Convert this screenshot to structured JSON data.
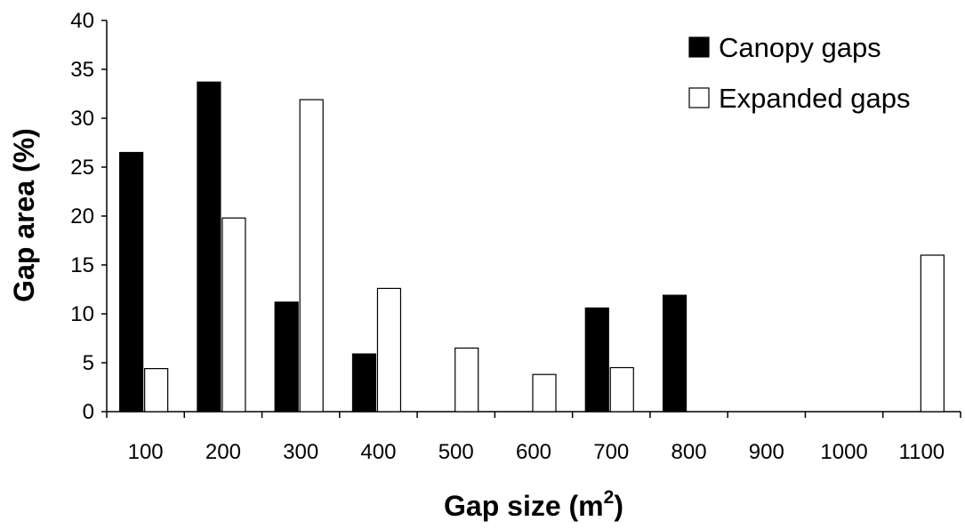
{
  "chart_data": {
    "type": "bar",
    "categories": [
      "100",
      "200",
      "300",
      "400",
      "500",
      "600",
      "700",
      "800",
      "900",
      "1000",
      "1100"
    ],
    "series": [
      {
        "name": "Canopy gaps",
        "values": [
          26.5,
          33.7,
          11.2,
          5.9,
          0,
          0,
          10.6,
          11.9,
          0,
          0,
          0
        ],
        "color": "#000000"
      },
      {
        "name": "Expanded gaps",
        "values": [
          4.4,
          19.8,
          31.9,
          12.6,
          6.5,
          3.8,
          4.5,
          0,
          0,
          0,
          16.0
        ],
        "color": "#ffffff"
      }
    ],
    "xlabel": "Gap size (m",
    "xlabel_sup": "2",
    "xlabel_end": ")",
    "ylabel": "Gap area (%)",
    "ylim": [
      0,
      40
    ],
    "yticks": [
      "0",
      "5",
      "10",
      "15",
      "20",
      "25",
      "30",
      "35",
      "40"
    ],
    "legend_position": "top-right",
    "grid": false
  }
}
